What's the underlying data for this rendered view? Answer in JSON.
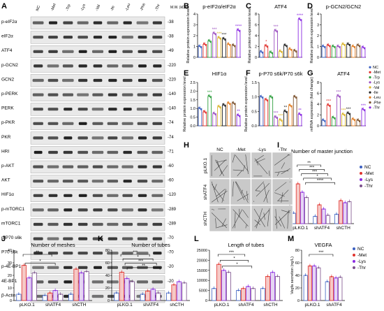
{
  "figure": {
    "panel_letters": [
      "A",
      "B",
      "C",
      "D",
      "E",
      "F",
      "G",
      "H",
      "I",
      "J",
      "K",
      "L",
      "M"
    ],
    "blot": {
      "lanes": [
        "NC",
        "-Met",
        "-Trp",
        "-Lys",
        "-Val",
        "-Ile",
        "-Leu",
        "-Phe",
        "-Thr"
      ],
      "mw_header": "M.W. (kDa)",
      "rows": [
        {
          "label": "p-eIF2α",
          "mw": "38"
        },
        {
          "label": "eIF2α",
          "mw": "38"
        },
        {
          "label": "ATF4",
          "mw": "49"
        },
        {
          "label": "p-GCN2",
          "mw": "220"
        },
        {
          "label": "GCN2",
          "mw": "220"
        },
        {
          "label": "p-PERK",
          "mw": "140"
        },
        {
          "label": "PERK",
          "mw": "140"
        },
        {
          "label": "p-PKR",
          "mw": "74"
        },
        {
          "label": "PKR",
          "mw": "74"
        },
        {
          "label": "HRI",
          "mw": "71"
        },
        {
          "label": "p-AKT",
          "mw": "60"
        },
        {
          "label": "AKT",
          "mw": "60"
        },
        {
          "label": "HIF1α",
          "mw": "120"
        },
        {
          "label": "p-mTORC1",
          "mw": "289"
        },
        {
          "label": "mTORC1",
          "mw": "289"
        },
        {
          "label": "p-P70 s6k",
          "mw": "70"
        },
        {
          "label": "P70 s6k",
          "mw": "70"
        },
        {
          "label": "p-4E-BP1",
          "mw": "20"
        },
        {
          "label": "4E-BP1",
          "mw": "20"
        },
        {
          "label": "β-Actin",
          "mw": "42"
        }
      ]
    },
    "legend_top": [
      "NC",
      "-Met",
      "-Trp",
      "-Lys",
      "-Val",
      "-Ile",
      "-Leu",
      "-Phe",
      "-Thr"
    ],
    "legend_top_colors": [
      "#3b5fc0",
      "#e0322d",
      "#2e9e3e",
      "#9b4fc0",
      "#d8b22a",
      "#222222",
      "#e07a1f",
      "#7a4f2a",
      "#8a2be2"
    ],
    "micro": {
      "col_titles": [
        "NC",
        "-Met",
        "-Lys",
        "-Thr"
      ],
      "row_titles": [
        "pLKO.1",
        "shATF4",
        "shCTH"
      ]
    },
    "legend_bottom": [
      "NC",
      "-Met",
      "-Lys",
      "-Thr"
    ],
    "legend_bottom_colors": [
      "#3b5fc0",
      "#e0322d",
      "#8a2be2",
      "#7a4f8a"
    ],
    "sig_marks": [
      "*",
      "**",
      "***",
      "****"
    ]
  },
  "chart_data": [
    {
      "panel": "B",
      "type": "bar",
      "title": "p-eIF2α/eIF2α",
      "ylabel": "Relative protein expression level",
      "ylim": [
        0,
        4
      ],
      "yticks": [
        "0",
        "1",
        "2",
        "3",
        "4"
      ],
      "categories": [
        "NC",
        "-Met",
        "-Trp",
        "-Lys",
        "-Val",
        "-Ile",
        "-Leu",
        "-Phe",
        "-Thr"
      ],
      "values": [
        1.0,
        1.2,
        1.5,
        2.2,
        1.8,
        1.7,
        1.2,
        1.1,
        2.5
      ],
      "sig": [
        "",
        "",
        "",
        "***",
        "***",
        "***",
        "",
        "",
        "****"
      ]
    },
    {
      "panel": "C",
      "type": "bar",
      "title": "ATF4",
      "ylabel": "Relative protein expression level",
      "ylim": [
        0,
        8
      ],
      "yticks": [
        "0",
        "2",
        "4",
        "6",
        "8"
      ],
      "categories": [
        "NC",
        "-Met",
        "-Trp",
        "-Lys",
        "-Val",
        "-Ile",
        "-Leu",
        "-Phe",
        "-Thr"
      ],
      "values": [
        1.0,
        2.1,
        0.9,
        4.9,
        1.1,
        2.2,
        1.5,
        1.2,
        7.0
      ],
      "sig": [
        "",
        "*",
        "",
        "***",
        "",
        "",
        "",
        "",
        "****"
      ]
    },
    {
      "panel": "D",
      "type": "bar",
      "title": "p-GCN2/GCN2",
      "ylabel": "Relative protein expression level",
      "ylim": [
        0,
        4
      ],
      "yticks": [
        "0",
        "1",
        "2",
        "3",
        "4"
      ],
      "categories": [
        "NC",
        "-Met",
        "-Trp",
        "-Lys",
        "-Val",
        "-Ile",
        "-Leu",
        "-Phe",
        "-Thr"
      ],
      "values": [
        1.0,
        1.1,
        1.0,
        1.0,
        1.2,
        1.2,
        1.0,
        1.1,
        0.9
      ],
      "sig": [
        "",
        "",
        "",
        "",
        "",
        "",
        "",
        "",
        ""
      ]
    },
    {
      "panel": "E",
      "type": "bar",
      "title": "HIF1α",
      "ylabel": "Relative protein expression level",
      "ylim": [
        0,
        2.5
      ],
      "yticks": [
        "0.0",
        "0.5",
        "1.0",
        "1.5",
        "2.0",
        "2.5"
      ],
      "categories": [
        "NC",
        "-Met",
        "-Trp",
        "-Lys",
        "-Val",
        "-Ile",
        "-Leu",
        "-Phe",
        "-Thr"
      ],
      "values": [
        1.0,
        0.8,
        1.7,
        0.7,
        1.1,
        1.2,
        1.3,
        1.3,
        0.6
      ],
      "sig": [
        "",
        "",
        "***",
        "",
        "",
        "",
        "",
        "",
        "**"
      ]
    },
    {
      "panel": "F",
      "type": "bar",
      "title": "p-P70 s6k/P70 s6k",
      "ylabel": "Relative protein expression level",
      "ylim": [
        0,
        1.5
      ],
      "yticks": [
        "0.0",
        "0.5",
        "1.0",
        "1.5"
      ],
      "categories": [
        "NC",
        "-Met",
        "-Trp",
        "-Lys",
        "-Val",
        "-Ile",
        "-Leu",
        "-Phe",
        "-Thr"
      ],
      "values": [
        1.0,
        0.9,
        1.0,
        0.3,
        0.2,
        0.5,
        0.7,
        1.0,
        0.4
      ],
      "sig": [
        "",
        "",
        "",
        "***",
        "***",
        "**",
        "",
        "",
        "**"
      ]
    },
    {
      "panel": "G",
      "type": "bar",
      "title": "ATF4",
      "ylabel": "mRNA expression (fold change)",
      "ylim": [
        0,
        8
      ],
      "yticks": [
        "0",
        "2",
        "4",
        "6",
        "8"
      ],
      "categories": [
        "NC",
        "-Met",
        "-Trp",
        "-Lys",
        "-Val",
        "-Ile",
        "-Leu",
        "-Phe",
        "-Thr"
      ],
      "values": [
        1.0,
        3.8,
        1.5,
        5.5,
        2.1,
        2.3,
        1.2,
        1.0,
        3.0
      ],
      "sig": [
        "",
        "***",
        "",
        "***",
        "***",
        "***",
        "",
        "",
        "***"
      ]
    },
    {
      "panel": "I",
      "type": "bar",
      "title": "Number of master junction",
      "ylim": [
        0,
        60
      ],
      "yticks": [
        "0",
        "20",
        "40",
        "60"
      ],
      "categories": [
        "pLKO.1",
        "shATF4",
        "shCTH"
      ],
      "series": [
        {
          "name": "NC",
          "values": [
            10,
            7,
            9
          ]
        },
        {
          "name": "-Met",
          "values": [
            38,
            18,
            22
          ]
        },
        {
          "name": "-Lys",
          "values": [
            30,
            14,
            20
          ]
        },
        {
          "name": "-Thr",
          "values": [
            25,
            8,
            21
          ]
        }
      ],
      "sig": [
        "**",
        "***",
        "***",
        "*",
        "****"
      ]
    },
    {
      "panel": "J",
      "type": "bar",
      "title": "Number of meshes",
      "ylim": [
        0,
        40
      ],
      "yticks": [
        "0",
        "10",
        "20",
        "30",
        "40"
      ],
      "categories": [
        "pLKO.1",
        "shATF4",
        "shCTH"
      ],
      "series": [
        {
          "name": "NC",
          "values": [
            5,
            4,
            5
          ]
        },
        {
          "name": "-Met",
          "values": [
            28,
            6,
            25
          ]
        },
        {
          "name": "-Lys",
          "values": [
            18,
            8,
            22
          ]
        },
        {
          "name": "-Thr",
          "values": [
            22,
            5,
            23
          ]
        }
      ],
      "sig": [
        "**",
        "*"
      ]
    },
    {
      "panel": "K",
      "type": "bar",
      "title": "Number of tubes",
      "ylim": [
        0,
        80
      ],
      "yticks": [
        "0",
        "20",
        "40",
        "60",
        "80"
      ],
      "categories": [
        "pLKO.1",
        "shATF4",
        "shCTH"
      ],
      "series": [
        {
          "name": "NC",
          "values": [
            12,
            10,
            12
          ]
        },
        {
          "name": "-Met",
          "values": [
            45,
            15,
            25
          ]
        },
        {
          "name": "-Lys",
          "values": [
            35,
            18,
            30
          ]
        },
        {
          "name": "-Thr",
          "values": [
            30,
            12,
            28
          ]
        }
      ],
      "sig": [
        "***",
        "*",
        "***",
        "**"
      ]
    },
    {
      "panel": "L",
      "type": "bar",
      "title": "Length of tubes",
      "ylim": [
        0,
        25000
      ],
      "yticks": [
        "0",
        "5000",
        "10000",
        "15000",
        "20000",
        "25000"
      ],
      "categories": [
        "pLKO.1",
        "shATF4",
        "shCTH"
      ],
      "series": [
        {
          "name": "NC",
          "values": [
            6000,
            5000,
            6000
          ]
        },
        {
          "name": "-Met",
          "values": [
            18000,
            6000,
            12000
          ]
        },
        {
          "name": "-Lys",
          "values": [
            15000,
            7000,
            14000
          ]
        },
        {
          "name": "-Thr",
          "values": [
            14000,
            6000,
            12000
          ]
        }
      ],
      "sig": [
        "***",
        "*",
        "*"
      ]
    },
    {
      "panel": "M",
      "type": "bar",
      "title": "VEGFA",
      "ylabel": "Vegfa secretion (ng/L)",
      "ylim": [
        0,
        80
      ],
      "yticks": [
        "0",
        "20",
        "40",
        "60",
        "80"
      ],
      "categories": [
        "pLKO.1",
        "shATF4"
      ],
      "series": [
        {
          "name": "NC",
          "values": [
            40,
            30
          ]
        },
        {
          "name": "-Met",
          "values": [
            55,
            38
          ]
        },
        {
          "name": "-Lys",
          "values": [
            55,
            36
          ]
        },
        {
          "name": "-Thr",
          "values": [
            52,
            37
          ]
        }
      ],
      "sig": [
        "***"
      ]
    }
  ]
}
